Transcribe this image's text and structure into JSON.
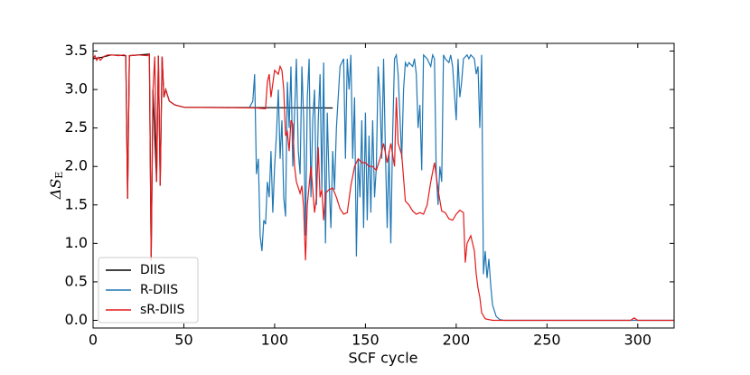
{
  "chart_data": {
    "type": "line",
    "x_label": "SCF cycle",
    "y_label": "ΔS",
    "y_label_subscript": "E",
    "xlim": [
      0,
      320
    ],
    "ylim": [
      -0.1,
      3.6
    ],
    "xticks": [
      0,
      50,
      100,
      150,
      200,
      250,
      300
    ],
    "yticks": [
      {
        "value": 0,
        "label": "0.0"
      },
      0.5,
      {
        "value": 1,
        "label": "1.0"
      },
      1.5,
      {
        "value": 2,
        "label": "2.0"
      },
      2.5,
      {
        "value": 3,
        "label": "3.0"
      },
      3.5
    ],
    "legend": "lower left",
    "series": [
      {
        "name": "DIIS",
        "color": "#000000",
        "x": [
          0,
          5,
          10,
          18,
          19,
          20,
          31,
          32,
          33,
          35,
          36,
          37,
          38,
          39,
          40,
          42,
          45,
          50,
          132
        ],
        "values": [
          3.4,
          3.42,
          3.45,
          3.44,
          1.58,
          3.44,
          3.46,
          0.78,
          3.0,
          1.8,
          3.44,
          1.75,
          3.43,
          2.9,
          3.0,
          2.85,
          2.8,
          2.77,
          2.76
        ]
      },
      {
        "name": "R-DIIS",
        "color": "#1f77b4",
        "x": [
          86,
          88,
          89,
          90,
          91,
          92,
          93,
          94,
          95,
          96,
          97,
          98,
          99,
          100,
          101,
          102,
          103,
          104,
          105,
          106,
          107,
          108,
          109,
          110,
          112,
          113,
          114,
          115,
          116,
          117,
          118,
          119,
          120,
          121,
          122,
          123,
          124,
          125,
          126,
          127,
          128,
          129,
          130,
          131,
          132,
          133,
          134,
          136,
          138,
          139,
          140,
          141,
          142,
          143,
          144,
          145,
          146,
          147,
          148,
          149,
          150,
          151,
          152,
          153,
          154,
          155,
          156,
          157,
          158,
          159,
          160,
          161,
          162,
          163,
          164,
          165,
          166,
          167,
          168,
          170,
          171,
          172,
          173,
          174,
          176,
          177,
          178,
          179,
          180,
          181,
          182,
          184,
          186,
          187,
          188,
          189,
          190,
          191,
          192,
          193,
          194,
          196,
          197,
          198,
          200,
          201,
          202,
          203,
          204,
          206,
          207,
          208,
          210,
          211,
          212,
          213,
          214,
          215,
          216,
          217,
          218,
          219,
          220,
          222,
          224,
          226,
          320
        ],
        "values": [
          2.76,
          2.85,
          3.2,
          1.9,
          2.1,
          1.1,
          0.9,
          1.3,
          1.25,
          1.8,
          1.6,
          2.2,
          1.4,
          2.0,
          2.4,
          3.0,
          2.1,
          2.6,
          1.6,
          1.35,
          3.1,
          2.5,
          3.3,
          2.0,
          3.4,
          2.2,
          1.9,
          3.3,
          2.6,
          1.1,
          2.9,
          3.4,
          1.6,
          2.6,
          3.0,
          1.5,
          2.6,
          3.2,
          1.7,
          3.35,
          1.0,
          2.7,
          1.8,
          1.2,
          2.2,
          1.7,
          2.5,
          3.3,
          3.4,
          2.1,
          3.4,
          3.0,
          3.45,
          2.1,
          2.9,
          0.83,
          2.1,
          1.6,
          2.6,
          1.2,
          2.7,
          1.3,
          2.4,
          1.4,
          2.6,
          1.6,
          2.0,
          3.3,
          2.9,
          2.1,
          3.4,
          2.2,
          1.2,
          2.2,
          1.0,
          2.4,
          3.4,
          3.45,
          3.2,
          2.1,
          3.0,
          3.35,
          3.3,
          3.35,
          3.3,
          3.4,
          3.2,
          2.5,
          2.8,
          1.95,
          3.45,
          3.4,
          3.3,
          3.45,
          3.4,
          1.9,
          1.5,
          2.0,
          1.8,
          3.45,
          3.4,
          3.35,
          3.45,
          3.3,
          2.6,
          3.4,
          2.9,
          3.1,
          3.4,
          3.45,
          3.4,
          3.45,
          3.4,
          3.2,
          3.3,
          2.5,
          3.45,
          0.6,
          0.9,
          0.55,
          0.8,
          0.45,
          0.2,
          0.05,
          0.01,
          0,
          0
        ]
      },
      {
        "name": "sR-DIIS",
        "color": "#e31a1c",
        "x": [
          0,
          1,
          2,
          3,
          4,
          6,
          8,
          10,
          14,
          17,
          18,
          19,
          20,
          25,
          30,
          31,
          32,
          33,
          34,
          35,
          36,
          37,
          38,
          39,
          40,
          42,
          45,
          50,
          90,
          95,
          96,
          97,
          98,
          100,
          102,
          103,
          104,
          105,
          106,
          107,
          108,
          109,
          110,
          111,
          112,
          114,
          115,
          116,
          117,
          118,
          120,
          121,
          122,
          123,
          124,
          125,
          126,
          127,
          128,
          130,
          132,
          134,
          136,
          138,
          140,
          142,
          144,
          146,
          148,
          150,
          152,
          154,
          156,
          158,
          160,
          162,
          164,
          166,
          167,
          168,
          170,
          172,
          174,
          176,
          178,
          180,
          182,
          184,
          186,
          188,
          190,
          192,
          194,
          196,
          198,
          200,
          202,
          204,
          205,
          206,
          208,
          210,
          211,
          212,
          213,
          214,
          216,
          220,
          250,
          296,
          298,
          300,
          320
        ],
        "values": [
          3.4,
          3.44,
          3.38,
          3.42,
          3.38,
          3.43,
          3.45,
          3.45,
          3.44,
          3.45,
          3.44,
          1.58,
          3.44,
          3.45,
          3.44,
          3.46,
          0.78,
          3.0,
          3.43,
          1.8,
          3.44,
          1.75,
          3.43,
          2.9,
          3.0,
          2.85,
          2.8,
          2.77,
          2.76,
          2.75,
          3.1,
          3.2,
          2.9,
          3.25,
          3.2,
          3.3,
          3.25,
          3.0,
          2.4,
          2.45,
          2.2,
          2.6,
          2.55,
          2.0,
          1.8,
          1.65,
          1.75,
          1.45,
          0.78,
          1.5,
          2.0,
          1.7,
          1.4,
          1.6,
          2.25,
          1.6,
          1.7,
          1.3,
          1.65,
          1.7,
          1.72,
          1.6,
          1.45,
          1.38,
          1.4,
          1.75,
          2.0,
          2.1,
          2.05,
          2.05,
          2.0,
          2.0,
          1.95,
          2.1,
          2.3,
          2.05,
          2.3,
          2.0,
          2.9,
          2.3,
          2.15,
          1.55,
          1.5,
          1.42,
          1.38,
          1.4,
          1.38,
          1.5,
          1.8,
          2.05,
          1.7,
          1.42,
          1.4,
          1.32,
          1.3,
          1.38,
          1.43,
          1.4,
          0.75,
          1.0,
          1.1,
          0.9,
          0.6,
          0.42,
          0.3,
          0.1,
          0.02,
          0,
          0,
          0,
          0.03,
          0,
          0
        ]
      }
    ]
  }
}
